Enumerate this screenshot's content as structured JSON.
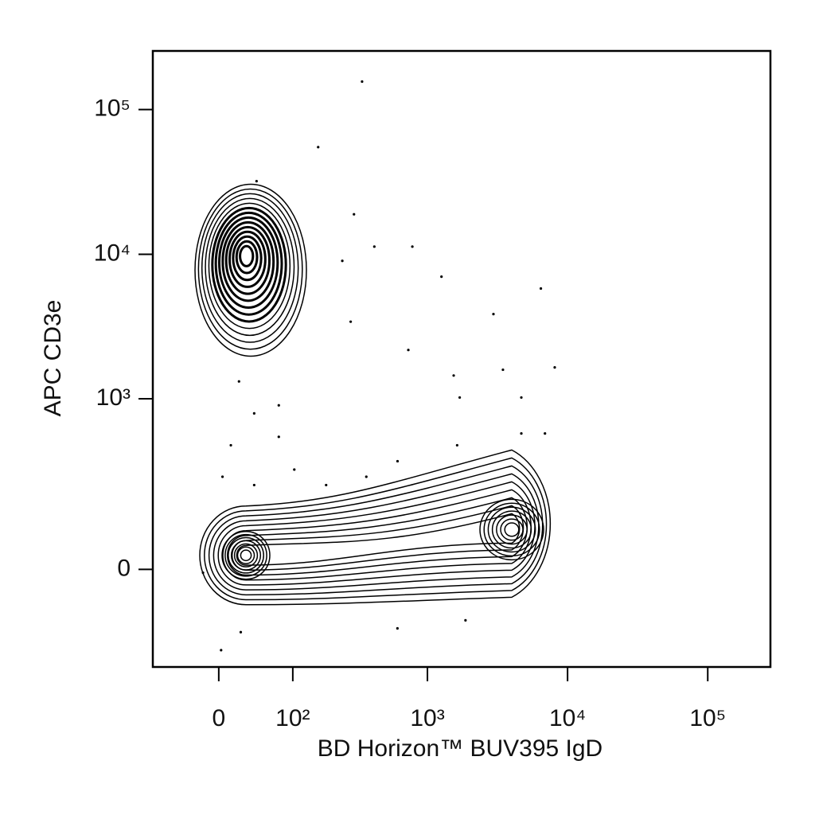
{
  "chart_data": {
    "type": "contour",
    "x_label": "BD Horizon™ BUV395 IgD",
    "y_label": "APC CD3e",
    "xscale": "biexponential",
    "yscale": "biexponential",
    "xlim": [
      -85,
      280000
    ],
    "ylim": [
      -300,
      254000
    ],
    "xticks": [
      0,
      {
        "value": 100,
        "label": "10²"
      },
      {
        "value": 1000,
        "label": "10³"
      },
      {
        "value": 10000,
        "label": "10⁴"
      },
      {
        "value": 100000,
        "label": "10⁵"
      }
    ],
    "yticks": [
      0,
      {
        "value": 1000,
        "label": "10³"
      },
      {
        "value": 10000,
        "label": "10⁴"
      },
      {
        "value": 100000,
        "label": "10⁵"
      }
    ],
    "color": "#000000",
    "populations": [
      {
        "x": 30,
        "y": 10000
      },
      {
        "x": 30,
        "y": 30
      },
      {
        "x": 4000,
        "y": 90
      }
    ],
    "events": {
      "x": [
        339,
        160,
        43,
        1260,
        6450,
        2960,
        8100,
        3460,
        730,
        280,
        22,
        40,
        13,
        75,
        4,
        184,
        364,
        611,
        1630,
        4680,
        6900,
        24,
        2.5,
        610,
        1870,
        -17,
        296,
        416,
        780,
        243,
        75,
        1540,
        1700,
        4680,
        103,
        40
      ],
      "y": [
        156000,
        55000,
        32000,
        7000,
        5800,
        3860,
        1650,
        1590,
        2180,
        3420,
        1320,
        790,
        470,
        540,
        275,
        237,
        275,
        360,
        470,
        570,
        570,
        -156,
        -222,
        -144,
        -120,
        -7,
        18900,
        11300,
        11300,
        9000,
        900,
        1450,
        1020,
        1020,
        312,
        237
      ]
    }
  }
}
